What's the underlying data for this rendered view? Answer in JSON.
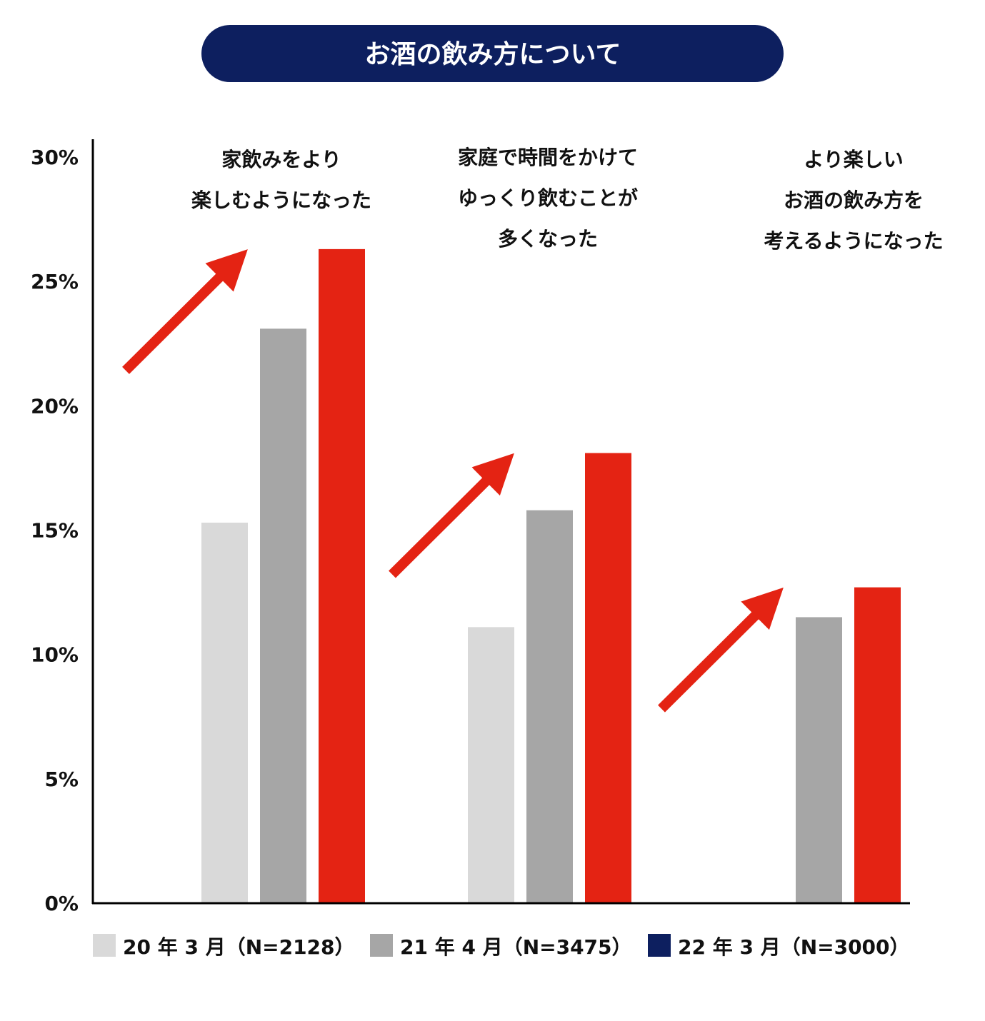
{
  "chart_data": {
    "type": "bar",
    "title": "お酒の飲み方について",
    "categories": [
      [
        "家飲みをより",
        "楽しむようになった"
      ],
      [
        "家庭で時間をかけて",
        "ゆっくり飲むことが",
        "多くなった"
      ],
      [
        "より楽しい",
        "お酒の飲み方を",
        "考えるようになった"
      ]
    ],
    "series": [
      {
        "name": "20 年 3 月（N=2128）",
        "values": [
          15.3,
          11.1,
          null
        ],
        "color": "#d9d9d9",
        "legend_color": "#d9d9d9"
      },
      {
        "name": "21 年 4 月（N=3475）",
        "values": [
          23.1,
          15.8,
          11.5
        ],
        "color": "#a6a6a6",
        "legend_color": "#a6a6a6"
      },
      {
        "name": "22 年 3 月（N=3000）",
        "values": [
          26.3,
          18.1,
          12.7
        ],
        "color": "#e42313",
        "legend_color": "#0d1f5f"
      }
    ],
    "yticks": [
      "0%",
      "5%",
      "10%",
      "15%",
      "20%",
      "25%",
      "30%"
    ],
    "ylim": [
      0,
      30
    ],
    "grid": false,
    "legend_position": "bottom",
    "arrow_color": "#e42313",
    "title_bg_color": "#0d1f5f"
  }
}
